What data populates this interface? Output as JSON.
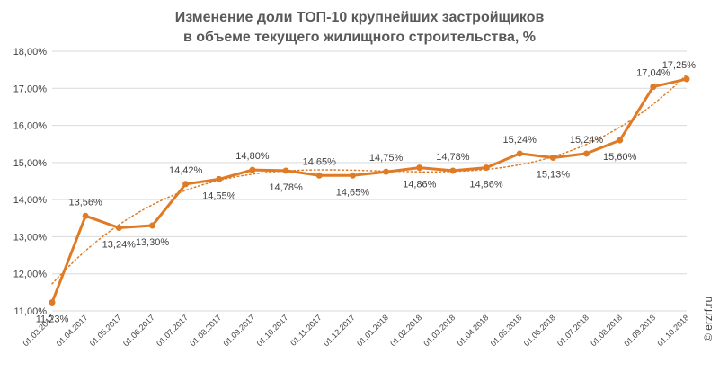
{
  "chart_data": {
    "type": "line",
    "title_lines": [
      "Изменение доли ТОП-10 крупнейших застройщиков",
      "в объеме текущего жилищного строительства, %"
    ],
    "xlabel": "",
    "ylabel": "",
    "ylim": [
      11,
      18
    ],
    "y_ticks": [
      11,
      12,
      13,
      14,
      15,
      16,
      17,
      18
    ],
    "y_tick_labels": [
      "11,00%",
      "12,00%",
      "13,00%",
      "14,00%",
      "15,00%",
      "16,00%",
      "17,00%",
      "18,00%"
    ],
    "grid": "horizontal",
    "categories": [
      "01.03.2017",
      "01.04.2017",
      "01.05.2017",
      "01.06.2017",
      "01.07.2017",
      "01.08.2017",
      "01.09.2017",
      "01.10.2017",
      "01.11.2017",
      "01.12.2017",
      "01.01.2018",
      "01.02.2018",
      "01.03.2018",
      "01.04.2018",
      "01.05.2018",
      "01.06.2018",
      "01.07.2018",
      "01.08.2018",
      "01.09.2018",
      "01.10.2018"
    ],
    "series": [
      {
        "values": [
          11.23,
          13.56,
          13.24,
          13.3,
          14.42,
          14.55,
          14.8,
          14.78,
          14.65,
          14.65,
          14.75,
          14.86,
          14.78,
          14.86,
          15.24,
          15.13,
          15.24,
          15.6,
          17.04,
          17.25
        ],
        "labels": [
          "11,23%",
          "13,56%",
          "13,24%",
          "13,30%",
          "14,42%",
          "14,55%",
          "14,80%",
          "14,78%",
          "14,65%",
          "14,65%",
          "14,75%",
          "14,86%",
          "14,78%",
          "14,86%",
          "15,24%",
          "15,13%",
          "15,24%",
          "15,60%",
          "17,04%",
          "17,25%"
        ],
        "label_positions": [
          "below",
          "above",
          "below",
          "below",
          "above",
          "below",
          "above",
          "below",
          "above",
          "below",
          "above",
          "below",
          "above",
          "below",
          "above",
          "below",
          "above",
          "below",
          "above",
          "above"
        ],
        "color": "#E07B25"
      }
    ],
    "trendline": {
      "style": "dotted",
      "type": "polynomial",
      "color": "#E07B25"
    }
  },
  "watermark": "© erzrf.ru"
}
